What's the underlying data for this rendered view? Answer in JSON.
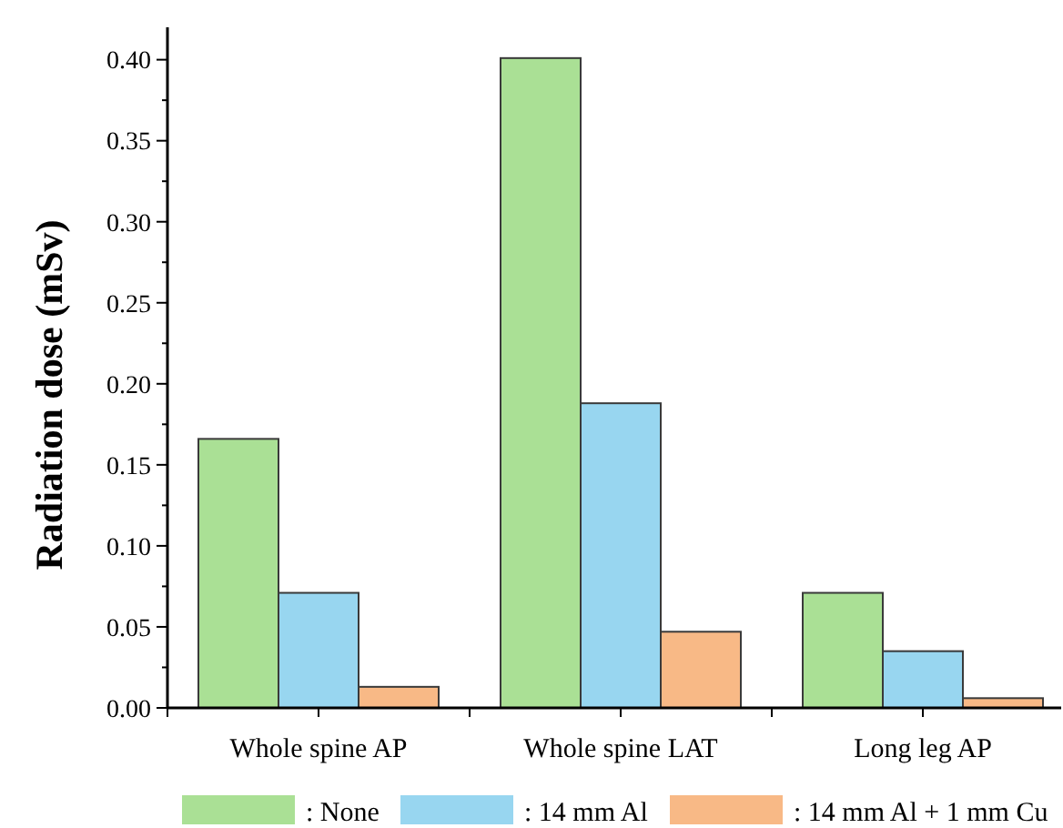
{
  "chart_data": {
    "type": "bar",
    "ylabel": "Radiation dose (mSv)",
    "categories": [
      "Whole spine AP",
      "Whole spine LAT",
      "Long leg AP"
    ],
    "series": [
      {
        "name": ": None",
        "color": "#aae095",
        "values": [
          0.166,
          0.401,
          0.071
        ]
      },
      {
        "name": ": 14 mm Al",
        "color": "#98d6f0",
        "values": [
          0.071,
          0.188,
          0.035
        ]
      },
      {
        "name": ": 14 mm Al + 1 mm Cu",
        "color": "#f8b986",
        "values": [
          0.013,
          0.047,
          0.006
        ]
      }
    ],
    "ylim": [
      0,
      0.42
    ],
    "yticks": [
      {
        "value": 0,
        "label": "0.00"
      },
      {
        "value": 0.025,
        "label": null
      },
      {
        "value": 0.05,
        "label": "0.05"
      },
      {
        "value": 0.075,
        "label": null
      },
      {
        "value": 0.1,
        "label": "0.10"
      },
      {
        "value": 0.125,
        "label": null
      },
      {
        "value": 0.15,
        "label": "0.15"
      },
      {
        "value": 0.175,
        "label": null
      },
      {
        "value": 0.2,
        "label": "0.20"
      },
      {
        "value": 0.225,
        "label": null
      },
      {
        "value": 0.25,
        "label": "0.25"
      },
      {
        "value": 0.275,
        "label": null
      },
      {
        "value": 0.3,
        "label": "0.30"
      },
      {
        "value": 0.325,
        "label": null
      },
      {
        "value": 0.35,
        "label": "0.35"
      },
      {
        "value": 0.375,
        "label": null
      },
      {
        "value": 0.4,
        "label": "0.40"
      }
    ],
    "grid": false,
    "legend": "bottom"
  }
}
